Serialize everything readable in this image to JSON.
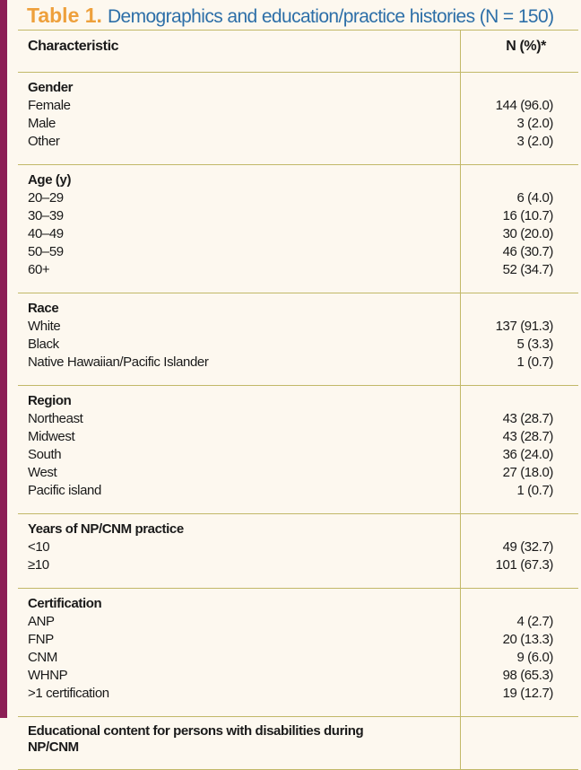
{
  "title": {
    "label": "Table 1.",
    "text": "Demographics and education/practice histories (N = 150)"
  },
  "table": {
    "header": [
      "Characteristic",
      "N (%)*"
    ],
    "sections": [
      {
        "heading": "Gender",
        "rows": [
          [
            "Female",
            "144 (96.0)"
          ],
          [
            "Male",
            "3 (2.0)"
          ],
          [
            "Other",
            "3 (2.0)"
          ]
        ]
      },
      {
        "heading": "Age (y)",
        "rows": [
          [
            "20–29",
            "6 (4.0)"
          ],
          [
            "30–39",
            "16 (10.7)"
          ],
          [
            "40–49",
            "30 (20.0)"
          ],
          [
            "50–59",
            "46 (30.7)"
          ],
          [
            "60+",
            "52 (34.7)"
          ]
        ]
      },
      {
        "heading": "Race",
        "rows": [
          [
            "White",
            "137 (91.3)"
          ],
          [
            "Black",
            "5 (3.3)"
          ],
          [
            "Native Hawaiian/Pacific Islander",
            "1 (0.7)"
          ]
        ]
      },
      {
        "heading": "Region",
        "rows": [
          [
            "Northeast",
            "43 (28.7)"
          ],
          [
            "Midwest",
            "43 (28.7)"
          ],
          [
            "South",
            "36 (24.0)"
          ],
          [
            "West",
            "27 (18.0)"
          ],
          [
            "Pacific island",
            "1 (0.7)"
          ]
        ]
      },
      {
        "heading": "Years of NP/CNM practice",
        "rows": [
          [
            "<10",
            "49 (32.7)"
          ],
          [
            "≥10",
            "101 (67.3)"
          ]
        ]
      },
      {
        "heading": "Certification",
        "rows": [
          [
            "ANP",
            "4 (2.7)"
          ],
          [
            "FNP",
            "20 (13.3)"
          ],
          [
            "CNM",
            "9 (6.0)"
          ],
          [
            "WHNP",
            "98 (65.3)"
          ],
          [
            ">1 certification",
            "19 (12.7)"
          ]
        ]
      },
      {
        "heading": "Educational content for persons with disabilities during NP/CNM",
        "rows": []
      }
    ]
  }
}
